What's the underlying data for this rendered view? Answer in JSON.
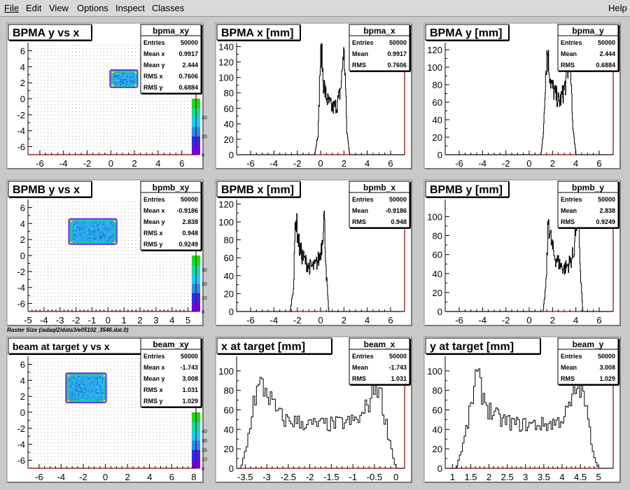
{
  "menu": {
    "items": [
      "File",
      "Edit",
      "View",
      "Options",
      "Inspect",
      "Classes"
    ],
    "help": "Help"
  },
  "canvas_label": "Raster Size (/adaql2/data3/e05102_3546.dat.0)",
  "colors": {
    "background": "#c9c9c9",
    "pad_fill": "#ffffff",
    "frame_axis": "#8b0000",
    "hist_line": "#000000"
  },
  "chart_data": [
    {
      "type": "heatmap",
      "title": "BPMA y vs x",
      "stats": {
        "name": "bpma_xy",
        "rows": [
          [
            "Entries",
            "50000"
          ],
          [
            "Mean x",
            "0.9917"
          ],
          [
            "Mean y",
            "2.444"
          ],
          [
            "RMS x",
            "0.7606"
          ],
          [
            "RMS y",
            "0.6884"
          ]
        ]
      },
      "xlim": [
        -7,
        7.2
      ],
      "ylim": [
        -7,
        7
      ],
      "xticks": [
        -6,
        -4,
        -2,
        0,
        2,
        4,
        6
      ],
      "yticks": [
        -6,
        -4,
        -2,
        0,
        2,
        4,
        6
      ],
      "region": {
        "x": [
          0,
          2.2
        ],
        "y": [
          1.5,
          3.5
        ]
      },
      "colorbar": {
        "range": [
          0,
          60
        ],
        "ticks": [
          0,
          20,
          40
        ]
      },
      "grid": false,
      "legend": "top-right"
    },
    {
      "type": "line",
      "title": "BPMA x [mm]",
      "stats": {
        "name": "bpma_x",
        "rows": [
          [
            "Entries",
            "50000"
          ],
          [
            "Mean",
            "0.9917"
          ],
          [
            "RMS",
            "0.7606"
          ]
        ]
      },
      "xlim": [
        -7.2,
        7.2
      ],
      "ylim": [
        0,
        145
      ],
      "xticks": [
        -6,
        -4,
        -2,
        0,
        2,
        4,
        6
      ],
      "yticks": [
        0,
        20,
        40,
        60,
        80,
        100,
        120,
        140
      ],
      "x": [
        -0.5,
        -0.2,
        -0.05,
        0.1,
        0.2,
        0.4,
        0.6,
        1.0,
        1.4,
        1.6,
        1.8,
        1.95,
        2.1,
        2.25,
        2.5
      ],
      "y": [
        0,
        30,
        110,
        140,
        100,
        80,
        70,
        60,
        65,
        75,
        95,
        135,
        110,
        30,
        0
      ],
      "grid": false,
      "legend": "top-right"
    },
    {
      "type": "line",
      "title": "BPMA y [mm]",
      "stats": {
        "name": "bpma_y",
        "rows": [
          [
            "Entries",
            "50000"
          ],
          [
            "Mean",
            "2.444"
          ],
          [
            "RMS",
            "0.6884"
          ]
        ]
      },
      "xlim": [
        -7.2,
        7.2
      ],
      "ylim": [
        0,
        128
      ],
      "xticks": [
        -6,
        -4,
        -2,
        0,
        2,
        4,
        6
      ],
      "yticks": [
        0,
        20,
        40,
        60,
        80,
        100,
        120
      ],
      "x": [
        1.0,
        1.2,
        1.4,
        1.55,
        1.7,
        1.9,
        2.2,
        2.6,
        2.9,
        3.1,
        3.3,
        3.5,
        3.7,
        4.0
      ],
      "y": [
        0,
        20,
        90,
        120,
        100,
        80,
        70,
        60,
        70,
        80,
        95,
        120,
        40,
        0
      ],
      "grid": false,
      "legend": "top-right"
    },
    {
      "type": "heatmap",
      "title": "BPMB y vs x",
      "stats": {
        "name": "bpmb_xy",
        "rows": [
          [
            "Entries",
            "50000"
          ],
          [
            "Mean x",
            "-0.9186"
          ],
          [
            "Mean y",
            "2.838"
          ],
          [
            "RMS x",
            "0.948"
          ],
          [
            "RMS y",
            "0.9249"
          ]
        ]
      },
      "xlim": [
        -5,
        5.5
      ],
      "ylim": [
        -7,
        7
      ],
      "xticks": [
        -5,
        -4,
        -3,
        -2,
        -1,
        0,
        1,
        2,
        3,
        4,
        5
      ],
      "yticks": [
        -6,
        -4,
        -2,
        0,
        2,
        4,
        6
      ],
      "region": {
        "x": [
          -2.4,
          0.5
        ],
        "y": [
          1.5,
          4.5
        ]
      },
      "colorbar": {
        "range": [
          0,
          40
        ],
        "ticks": [
          0,
          10,
          20,
          30
        ]
      },
      "grid": false,
      "legend": "top-right"
    },
    {
      "type": "line",
      "title": "BPMB x [mm]",
      "stats": {
        "name": "bpmb_x",
        "rows": [
          [
            "Entries",
            "50000"
          ],
          [
            "Mean",
            "-0.9186"
          ],
          [
            "RMS",
            "0.948"
          ]
        ]
      },
      "xlim": [
        -7.2,
        7.2
      ],
      "ylim": [
        0,
        125
      ],
      "xticks": [
        -6,
        -4,
        -2,
        0,
        2,
        4,
        6
      ],
      "yticks": [
        0,
        20,
        40,
        60,
        80,
        100,
        120
      ],
      "x": [
        -2.6,
        -2.3,
        -2.15,
        -2.0,
        -1.8,
        -1.5,
        -1.0,
        -0.5,
        -0.1,
        0.1,
        0.3,
        0.5,
        0.7
      ],
      "y": [
        0,
        30,
        110,
        90,
        70,
        60,
        50,
        50,
        60,
        75,
        110,
        40,
        0
      ],
      "grid": false,
      "legend": "top-right"
    },
    {
      "type": "line",
      "title": "BPMB y [mm]",
      "stats": {
        "name": "bpmb_y",
        "rows": [
          [
            "Entries",
            "50000"
          ],
          [
            "Mean",
            "2.838"
          ],
          [
            "RMS",
            "0.9249"
          ]
        ]
      },
      "xlim": [
        -7.2,
        7.2
      ],
      "ylim": [
        0,
        118
      ],
      "xticks": [
        -6,
        -4,
        -2,
        0,
        2,
        4,
        6
      ],
      "yticks": [
        0,
        20,
        40,
        60,
        80,
        100
      ],
      "x": [
        1.2,
        1.45,
        1.65,
        1.8,
        2.1,
        2.6,
        3.0,
        3.4,
        3.8,
        4.0,
        4.2,
        4.4,
        4.6
      ],
      "y": [
        0,
        30,
        100,
        80,
        60,
        50,
        45,
        50,
        60,
        90,
        110,
        40,
        0
      ],
      "grid": false,
      "legend": "top-right"
    },
    {
      "type": "heatmap",
      "title": "beam at target y vs x",
      "stats": {
        "name": "beam_xy",
        "rows": [
          [
            "Entries",
            "50000"
          ],
          [
            "Mean x",
            "-1.743"
          ],
          [
            "Mean y",
            "3.008"
          ],
          [
            "RMS x",
            "1.031"
          ],
          [
            "RMS y",
            "1.029"
          ]
        ]
      },
      "xlim": [
        -7,
        8.2
      ],
      "ylim": [
        -7,
        7
      ],
      "xticks": [
        -6,
        -4,
        -2,
        0,
        2,
        4,
        6,
        8
      ],
      "yticks": [
        -6,
        -4,
        -2,
        0,
        2,
        4,
        6
      ],
      "region": {
        "x": [
          -3.5,
          0
        ],
        "y": [
          1.3,
          4.8
        ]
      },
      "colorbar": {
        "range": [
          0,
          60
        ],
        "ticks": [
          0,
          10,
          20,
          30,
          40
        ]
      },
      "grid": false,
      "legend": "top-right"
    },
    {
      "type": "line",
      "title": "x at target [mm]",
      "stats": {
        "name": "beam_x",
        "rows": [
          [
            "Entries",
            "50000"
          ],
          [
            "Mean",
            "-1.743"
          ],
          [
            "RMS",
            "1.031"
          ]
        ]
      },
      "xlim": [
        -3.7,
        0.2
      ],
      "ylim": [
        0,
        115
      ],
      "xticks": [
        -3.5,
        -3,
        -2.5,
        -2,
        -1.5,
        -1,
        -0.5,
        0
      ],
      "yticks": [
        0,
        20,
        40,
        60,
        80,
        100
      ],
      "x": [
        -3.6,
        -3.45,
        -3.3,
        -3.15,
        -3.0,
        -2.8,
        -2.6,
        -2.3,
        -2.0,
        -1.5,
        -1.0,
        -0.8,
        -0.6,
        -0.45,
        -0.35,
        -0.2,
        -0.05,
        0.0
      ],
      "y": [
        0,
        25,
        70,
        85,
        80,
        60,
        50,
        48,
        45,
        45,
        48,
        52,
        70,
        90,
        75,
        40,
        10,
        0
      ],
      "grid": false,
      "legend": "top-right"
    },
    {
      "type": "line",
      "title": "y at target [mm]",
      "stats": {
        "name": "beam_y",
        "rows": [
          [
            "Entries",
            "50000"
          ],
          [
            "Mean",
            "3.008"
          ],
          [
            "RMS",
            "1.029"
          ]
        ]
      },
      "xlim": [
        0.8,
        5.4
      ],
      "ylim": [
        0,
        115
      ],
      "xticks": [
        1,
        1.5,
        2,
        2.5,
        3,
        3.5,
        4,
        4.5,
        5
      ],
      "yticks": [
        0,
        20,
        40,
        60,
        80,
        100
      ],
      "x": [
        1.1,
        1.3,
        1.5,
        1.65,
        1.8,
        2.0,
        2.3,
        2.8,
        3.2,
        3.6,
        3.9,
        4.1,
        4.3,
        4.45,
        4.6,
        4.75,
        4.9,
        5.0
      ],
      "y": [
        0,
        25,
        60,
        95,
        80,
        60,
        50,
        45,
        45,
        45,
        48,
        55,
        70,
        90,
        75,
        40,
        10,
        0
      ],
      "grid": false,
      "legend": "top-right"
    }
  ]
}
